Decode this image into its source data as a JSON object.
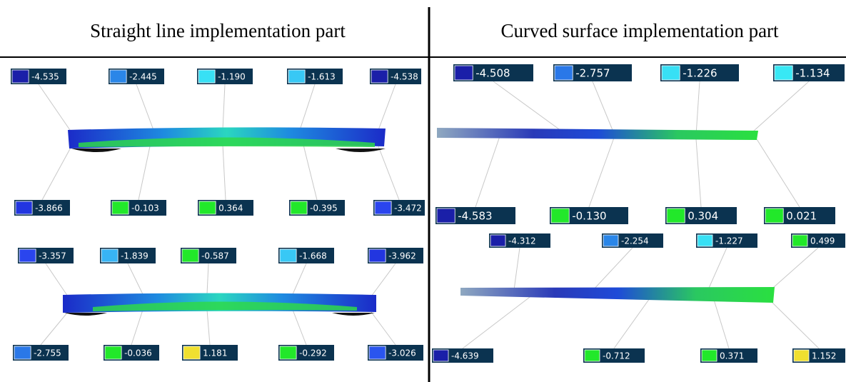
{
  "panels": [
    {
      "title": "Straight line implementation part",
      "labels": [
        {
          "value": "-4.535",
          "color": "#1a1fa8"
        },
        {
          "value": "-2.445",
          "color": "#2a86e8"
        },
        {
          "value": "-1.190",
          "color": "#38e0f5"
        },
        {
          "value": "-1.613",
          "color": "#38c8f5"
        },
        {
          "value": "-4.538",
          "color": "#1a1fa8"
        },
        {
          "value": "-3.866",
          "color": "#2236e0"
        },
        {
          "value": "-0.103",
          "color": "#22e82a"
        },
        {
          "value": "0.364",
          "color": "#22e82a"
        },
        {
          "value": "-0.395",
          "color": "#22e82a"
        },
        {
          "value": "-3.472",
          "color": "#2a45ee"
        },
        {
          "value": "-3.357",
          "color": "#2a45ee"
        },
        {
          "value": "-1.839",
          "color": "#38b4f5"
        },
        {
          "value": "-0.587",
          "color": "#22e82a"
        },
        {
          "value": "-1.668",
          "color": "#38c8f5"
        },
        {
          "value": "-3.962",
          "color": "#2236e0"
        },
        {
          "value": "-2.755",
          "color": "#2a78e8"
        },
        {
          "value": "-0.036",
          "color": "#22e82a"
        },
        {
          "value": "1.181",
          "color": "#f0e030"
        },
        {
          "value": "-0.292",
          "color": "#22e82a"
        },
        {
          "value": "-3.026",
          "color": "#2a55ee"
        }
      ]
    },
    {
      "title": "Curved surface implementation part",
      "labels": [
        {
          "value": "-4.508",
          "color": "#1a1fa8"
        },
        {
          "value": "-2.757",
          "color": "#2a78e8"
        },
        {
          "value": "-1.226",
          "color": "#38e0f5"
        },
        {
          "value": "-1.134",
          "color": "#38e8f5"
        },
        {
          "value": "-4.583",
          "color": "#1a1fa8"
        },
        {
          "value": "-0.130",
          "color": "#22e82a"
        },
        {
          "value": "0.304",
          "color": "#22e82a"
        },
        {
          "value": "0.021",
          "color": "#22e82a"
        },
        {
          "value": "-4.312",
          "color": "#1a1fa8"
        },
        {
          "value": "-2.254",
          "color": "#2a86e8"
        },
        {
          "value": "-1.227",
          "color": "#38e0f5"
        },
        {
          "value": "0.499",
          "color": "#22e82a"
        },
        {
          "value": "-4.639",
          "color": "#1a1fa8"
        },
        {
          "value": "-0.712",
          "color": "#22e82a"
        },
        {
          "value": "0.371",
          "color": "#22e82a"
        },
        {
          "value": "1.152",
          "color": "#f0e030"
        }
      ]
    }
  ]
}
